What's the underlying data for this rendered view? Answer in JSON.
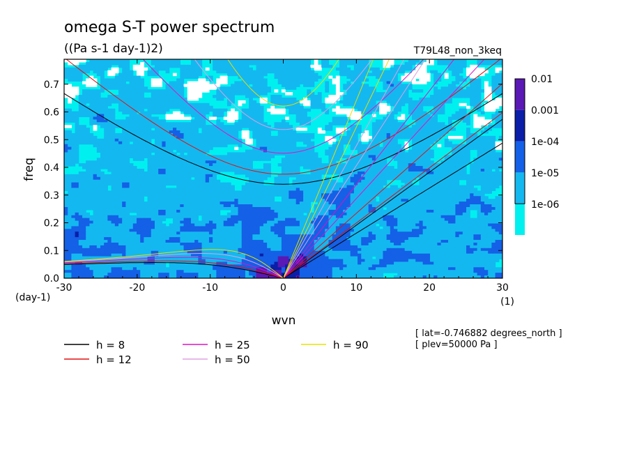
{
  "chart_data": {
    "type": "heatmap",
    "title": "omega S-T power spectrum",
    "subtitle": "((Pa s-1 day-1)2)",
    "run_label": "T79L48_non_3keq",
    "xlabel": "wvn",
    "ylabel": "freq",
    "x_unit": "(1)",
    "y_unit": "(day-1)",
    "xlim": [
      -30,
      30
    ],
    "ylim": [
      0,
      0.79
    ],
    "x_ticks": [
      "-30",
      "-20",
      "-10",
      "0",
      "10",
      "20",
      "30"
    ],
    "x_tick_values": [
      -30,
      -20,
      -10,
      0,
      10,
      20,
      30
    ],
    "y_ticks": [
      "0.0",
      "0.1",
      "0.2",
      "0.3",
      "0.4",
      "0.5",
      "0.6",
      "0.7"
    ],
    "y_tick_values": [
      0,
      0.1,
      0.2,
      0.3,
      0.4,
      0.5,
      0.6,
      0.7
    ],
    "colorbar": {
      "labels": [
        "0.01",
        "0.001",
        "1e-04",
        "1e-05",
        "1e-06"
      ],
      "colors": [
        "#5a18b4",
        "#0a1ea8",
        "#1460e6",
        "#14b8f0",
        "#00f0f0"
      ]
    },
    "field_colors": {
      "lowest": "#00f0f0",
      "low": "#14b8f0",
      "mid": "#1460e6",
      "high": "#0a1ea8",
      "highest": "#5a18b4",
      "holes": "#ffffff"
    },
    "dispersion_curves": [
      {
        "label": "h =  8",
        "h": 8,
        "color": "#000000"
      },
      {
        "label": "h = 12",
        "h": 12,
        "color": "#e01010"
      },
      {
        "label": "h = 25",
        "h": 25,
        "color": "#e010c8"
      },
      {
        "label": "h = 50",
        "h": 50,
        "color": "#e0a0e0"
      },
      {
        "label": "h = 90",
        "h": 90,
        "color": "#e8e000"
      }
    ],
    "annotations": [
      "[ lat=-0.746882 degrees_north ]",
      "[ plev=50000 Pa ]"
    ]
  }
}
